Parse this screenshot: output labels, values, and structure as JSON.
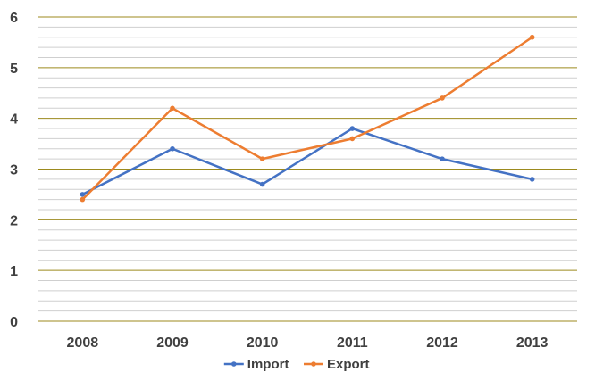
{
  "chart_data": {
    "type": "line",
    "categories": [
      "2008",
      "2009",
      "2010",
      "2011",
      "2012",
      "2013"
    ],
    "series": [
      {
        "name": "Import",
        "values": [
          2.5,
          3.4,
          2.7,
          3.8,
          3.2,
          2.8
        ],
        "color": "#4472c4"
      },
      {
        "name": "Export",
        "values": [
          2.4,
          4.2,
          3.2,
          3.6,
          4.4,
          5.6
        ],
        "color": "#ed7d31"
      }
    ],
    "title": "",
    "xlabel": "",
    "ylabel": "",
    "ylim": [
      0,
      6
    ],
    "yticks": [
      "0",
      "1",
      "2",
      "3",
      "4",
      "5",
      "6"
    ],
    "grid": true,
    "legend_position": "bottom"
  }
}
